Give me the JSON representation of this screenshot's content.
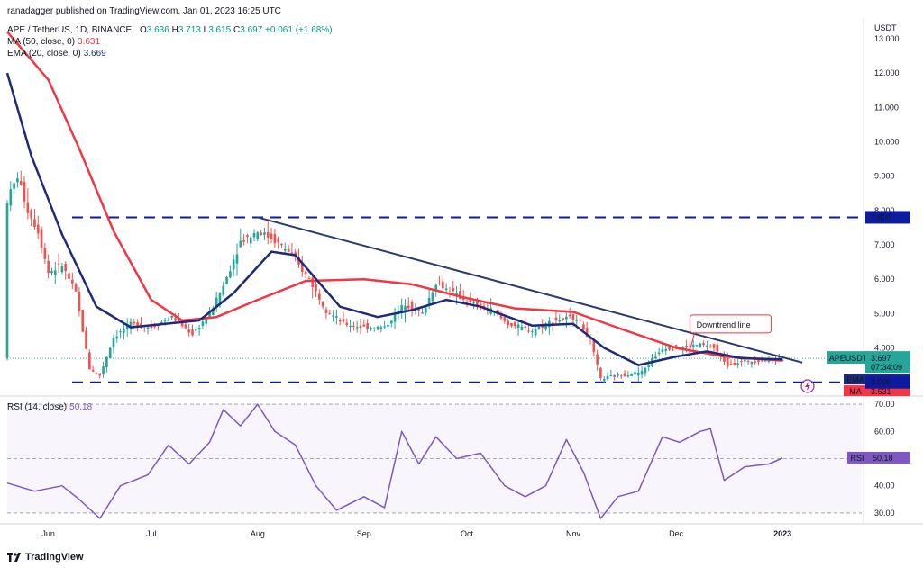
{
  "header": {
    "publisher": "ranadagger published on TradingView.com, Jan 01, 2023 16:25 UTC",
    "symbol_line": "APE / TetherUS, 1D, BINANCE",
    "ohlc": {
      "o_label": "O",
      "o": "3.636",
      "h_label": "H",
      "h": "3.713",
      "l_label": "L",
      "l": "3.615",
      "c_label": "C",
      "c": "3.697",
      "change": "+0.061 (+1.68%)"
    },
    "ma_label": "MA (50, close, 0)",
    "ma_value": "3.631",
    "ema_label": "EMA (20, close, 0)",
    "ema_value": "3.669",
    "rsi_label": "RSI (14, close)",
    "rsi_value": "50.18"
  },
  "footer": {
    "brand": "TradingView"
  },
  "colors": {
    "candle_up": "#26a69a",
    "candle_down": "#ef5350",
    "ma": "#f23645",
    "ema": "#1e2b7a",
    "rsi": "#7e57c2",
    "trend": "#2a3b72",
    "level": "#0d1b9e",
    "current": "#26a69a"
  },
  "chart_data": [
    {
      "type": "candlestick",
      "title": "APE / TetherUS, 1D, BINANCE",
      "currency_label": "USDT",
      "y_ticks": [
        "13.000",
        "12.000",
        "11.000",
        "10.000",
        "9.000",
        "8.000",
        "7.000",
        "6.000",
        "5.000",
        "4.000",
        "3.000"
      ],
      "y_tick_values": [
        13,
        12,
        11,
        10,
        9,
        8,
        7,
        6,
        5,
        4,
        3
      ],
      "ylim": [
        2.6,
        13.6
      ],
      "x_ticks": [
        "Jun",
        "Jul",
        "Aug",
        "Sep",
        "Oct",
        "Nov",
        "Dec",
        "2023"
      ],
      "x_tick_dates": [
        "2022-06-01",
        "2022-07-01",
        "2022-08-01",
        "2022-09-01",
        "2022-10-01",
        "2022-11-01",
        "2022-12-01",
        "2023-01-01"
      ],
      "x_start": "2022-05-20",
      "x_end": "2023-01-12",
      "price_path": [
        [
          "2022-05-20",
          8.3
        ],
        [
          "2022-05-23",
          9.0
        ],
        [
          "2022-05-26",
          8.0
        ],
        [
          "2022-05-29",
          7.4
        ],
        [
          "2022-06-01",
          6.2
        ],
        [
          "2022-06-05",
          6.4
        ],
        [
          "2022-06-09",
          5.6
        ],
        [
          "2022-06-13",
          3.4
        ],
        [
          "2022-06-16",
          3.2
        ],
        [
          "2022-06-20",
          4.3
        ],
        [
          "2022-06-25",
          4.7
        ],
        [
          "2022-07-01",
          4.6
        ],
        [
          "2022-07-07",
          4.9
        ],
        [
          "2022-07-13",
          4.4
        ],
        [
          "2022-07-18",
          5.0
        ],
        [
          "2022-07-22",
          5.8
        ],
        [
          "2022-07-27",
          7.1
        ],
        [
          "2022-08-01",
          7.4
        ],
        [
          "2022-08-05",
          7.2
        ],
        [
          "2022-08-10",
          6.8
        ],
        [
          "2022-08-16",
          6.0
        ],
        [
          "2022-08-21",
          5.1
        ],
        [
          "2022-08-26",
          4.7
        ],
        [
          "2022-09-01",
          4.6
        ],
        [
          "2022-09-07",
          4.6
        ],
        [
          "2022-09-13",
          5.3
        ],
        [
          "2022-09-18",
          5.0
        ],
        [
          "2022-09-22",
          5.9
        ],
        [
          "2022-09-27",
          5.6
        ],
        [
          "2022-10-02",
          5.3
        ],
        [
          "2022-10-08",
          5.1
        ],
        [
          "2022-10-13",
          4.7
        ],
        [
          "2022-10-20",
          4.5
        ],
        [
          "2022-10-26",
          4.8
        ],
        [
          "2022-11-02",
          4.9
        ],
        [
          "2022-11-06",
          4.2
        ],
        [
          "2022-11-09",
          3.1
        ],
        [
          "2022-11-14",
          3.2
        ],
        [
          "2022-11-21",
          3.3
        ],
        [
          "2022-11-27",
          4.0
        ],
        [
          "2022-12-02",
          4.0
        ],
        [
          "2022-12-08",
          4.1
        ],
        [
          "2022-12-12",
          4.0
        ],
        [
          "2022-12-16",
          3.5
        ],
        [
          "2022-12-20",
          3.6
        ],
        [
          "2022-12-27",
          3.65
        ],
        [
          "2023-01-01",
          3.697
        ]
      ],
      "series": [
        {
          "name": "MA (50, close, 0)",
          "points": [
            [
              "2022-05-20",
              13.2
            ],
            [
              "2022-06-01",
              11.8
            ],
            [
              "2022-06-10",
              9.8
            ],
            [
              "2022-06-20",
              7.4
            ],
            [
              "2022-07-01",
              5.4
            ],
            [
              "2022-07-10",
              4.8
            ],
            [
              "2022-07-20",
              4.9
            ],
            [
              "2022-08-01",
              5.4
            ],
            [
              "2022-08-15",
              5.95
            ],
            [
              "2022-09-01",
              6.0
            ],
            [
              "2022-09-15",
              5.85
            ],
            [
              "2022-10-01",
              5.45
            ],
            [
              "2022-10-15",
              5.15
            ],
            [
              "2022-11-01",
              5.05
            ],
            [
              "2022-11-15",
              4.55
            ],
            [
              "2022-12-01",
              4.0
            ],
            [
              "2022-12-15",
              3.75
            ],
            [
              "2023-01-01",
              3.631
            ]
          ]
        },
        {
          "name": "EMA (20, close, 0)",
          "points": [
            [
              "2022-05-20",
              12.0
            ],
            [
              "2022-05-27",
              9.6
            ],
            [
              "2022-06-05",
              7.3
            ],
            [
              "2022-06-15",
              5.2
            ],
            [
              "2022-06-25",
              4.6
            ],
            [
              "2022-07-05",
              4.7
            ],
            [
              "2022-07-15",
              4.8
            ],
            [
              "2022-07-25",
              5.6
            ],
            [
              "2022-08-05",
              6.8
            ],
            [
              "2022-08-12",
              6.7
            ],
            [
              "2022-08-25",
              5.2
            ],
            [
              "2022-09-05",
              4.9
            ],
            [
              "2022-09-15",
              5.1
            ],
            [
              "2022-09-25",
              5.4
            ],
            [
              "2022-10-05",
              5.2
            ],
            [
              "2022-10-20",
              4.65
            ],
            [
              "2022-11-01",
              4.7
            ],
            [
              "2022-11-10",
              4.0
            ],
            [
              "2022-11-20",
              3.5
            ],
            [
              "2022-12-01",
              3.75
            ],
            [
              "2022-12-10",
              3.9
            ],
            [
              "2022-12-20",
              3.7
            ],
            [
              "2023-01-01",
              3.669
            ]
          ]
        }
      ],
      "horizontal_levels": [
        {
          "value": 7.8,
          "label": "7.800"
        },
        {
          "value": 3.0,
          "label": "3.000"
        }
      ],
      "trendline": {
        "from": [
          "2022-08-01",
          7.8
        ],
        "to": [
          "2023-01-01",
          3.6
        ]
      },
      "annotations": [
        {
          "text": "Downtrend line",
          "date": "2022-12-09",
          "value": 4.7
        }
      ],
      "price_label": {
        "symbol": "APEUSDT",
        "value": "3.697",
        "countdown": "07:34:09"
      },
      "indicator_labels": [
        {
          "name": "EMA",
          "value": "3.669"
        },
        {
          "name": "MA",
          "value": "3.631"
        }
      ]
    },
    {
      "type": "line",
      "title": "RSI (14, close)",
      "y_ticks": [
        "70.00",
        "60.00",
        "50.00",
        "40.00",
        "30.00"
      ],
      "y_tick_values": [
        70,
        60,
        50,
        40,
        30
      ],
      "ylim": [
        26,
        73
      ],
      "bands": [
        70,
        50,
        30
      ],
      "series": [
        {
          "name": "RSI",
          "points": [
            [
              "2022-05-20",
              41
            ],
            [
              "2022-05-28",
              38
            ],
            [
              "2022-06-05",
              40
            ],
            [
              "2022-06-10",
              35
            ],
            [
              "2022-06-16",
              28
            ],
            [
              "2022-06-22",
              40
            ],
            [
              "2022-06-30",
              44
            ],
            [
              "2022-07-06",
              55
            ],
            [
              "2022-07-12",
              48
            ],
            [
              "2022-07-18",
              56
            ],
            [
              "2022-07-22",
              68
            ],
            [
              "2022-07-27",
              62
            ],
            [
              "2022-08-01",
              70
            ],
            [
              "2022-08-06",
              60
            ],
            [
              "2022-08-12",
              55
            ],
            [
              "2022-08-18",
              40
            ],
            [
              "2022-08-24",
              31
            ],
            [
              "2022-09-01",
              36
            ],
            [
              "2022-09-07",
              32
            ],
            [
              "2022-09-12",
              60
            ],
            [
              "2022-09-17",
              48
            ],
            [
              "2022-09-22",
              58
            ],
            [
              "2022-09-28",
              50
            ],
            [
              "2022-10-05",
              52
            ],
            [
              "2022-10-12",
              40
            ],
            [
              "2022-10-18",
              36
            ],
            [
              "2022-10-24",
              40
            ],
            [
              "2022-10-30",
              57
            ],
            [
              "2022-11-04",
              45
            ],
            [
              "2022-11-09",
              28
            ],
            [
              "2022-11-14",
              36
            ],
            [
              "2022-11-20",
              38
            ],
            [
              "2022-11-27",
              58
            ],
            [
              "2022-12-02",
              56
            ],
            [
              "2022-12-08",
              60
            ],
            [
              "2022-12-11",
              61
            ],
            [
              "2022-12-15",
              42
            ],
            [
              "2022-12-21",
              47
            ],
            [
              "2022-12-28",
              48
            ],
            [
              "2023-01-01",
              50.18
            ]
          ]
        }
      ],
      "price_label": {
        "name": "RSI",
        "value": "50.18"
      }
    }
  ]
}
